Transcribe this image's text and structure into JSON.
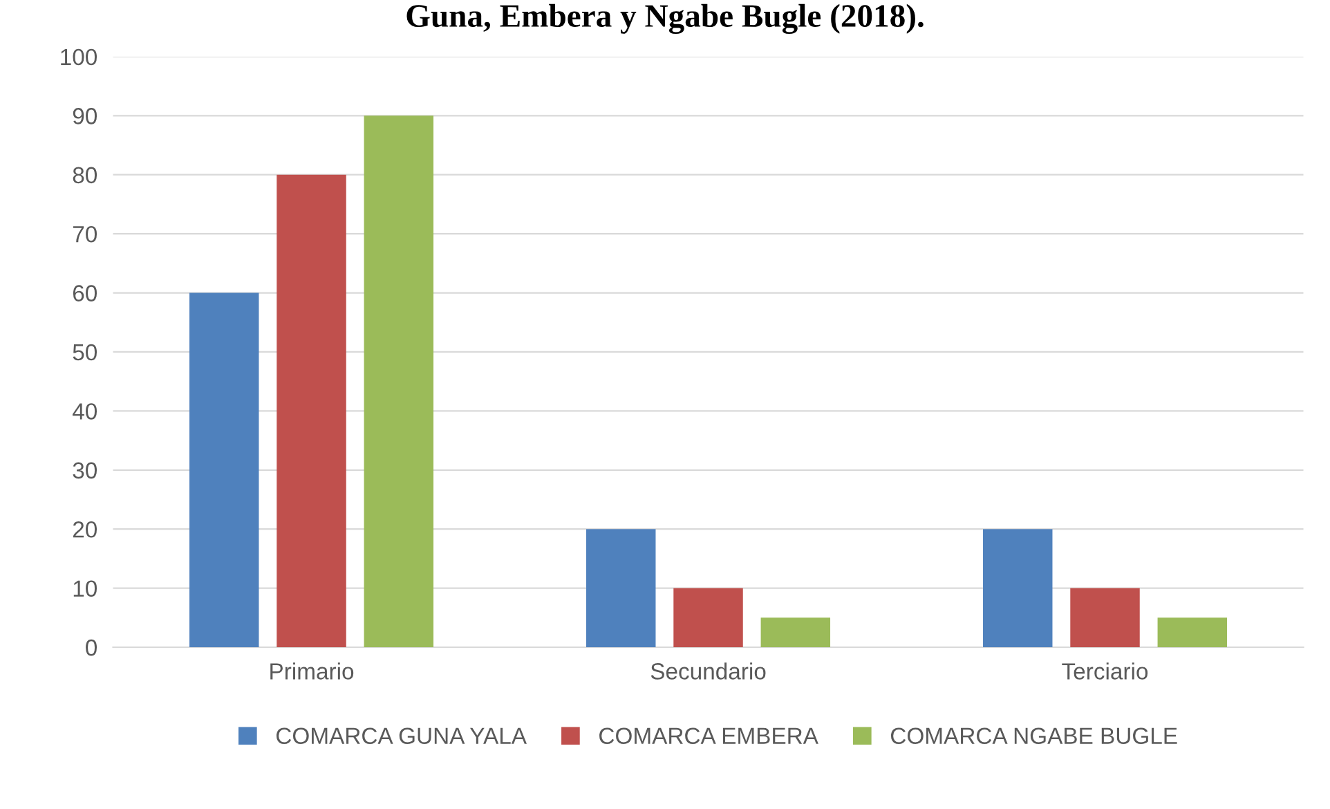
{
  "chart_data": {
    "type": "bar",
    "title": "Guna, Embera y Ngabe Bugle (2018).",
    "categories": [
      "Primario",
      "Secundario",
      "Terciario"
    ],
    "series": [
      {
        "name": "COMARCA GUNA YALA",
        "color": "#4f81bd",
        "values": [
          60,
          20,
          20
        ]
      },
      {
        "name": "COMARCA EMBERA",
        "color": "#c0504d",
        "values": [
          80,
          10,
          10
        ]
      },
      {
        "name": "COMARCA NGABE BUGLE",
        "color": "#9bbb59",
        "values": [
          90,
          5,
          5
        ]
      }
    ],
    "ylim": [
      0,
      100
    ],
    "yticks": [
      0,
      10,
      20,
      30,
      40,
      50,
      60,
      70,
      80,
      90,
      100
    ],
    "grid": "y",
    "legend": "bottom"
  }
}
